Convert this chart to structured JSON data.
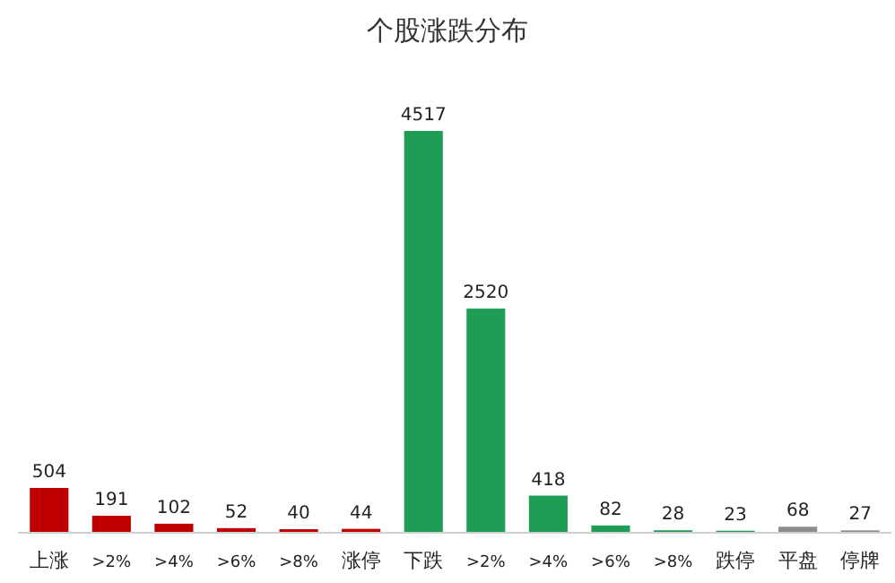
{
  "chart_data": {
    "type": "bar",
    "title": "个股涨跌分布",
    "categories": [
      "上涨",
      ">2%",
      ">4%",
      ">6%",
      ">8%",
      "涨停",
      "下跌",
      ">2%",
      ">4%",
      ">6%",
      ">8%",
      "跌停",
      "平盘",
      "停牌"
    ],
    "values": [
      504,
      191,
      102,
      52,
      40,
      44,
      4517,
      2520,
      418,
      82,
      28,
      23,
      68,
      27
    ],
    "colors": [
      "#c00000",
      "#c00000",
      "#c00000",
      "#c00000",
      "#c00000",
      "#c00000",
      "#1e9e55",
      "#1e9e55",
      "#1e9e55",
      "#1e9e55",
      "#1e9e55",
      "#1e9e55",
      "#8c8c8c",
      "#8c8c8c"
    ],
    "data_labels": true
  }
}
